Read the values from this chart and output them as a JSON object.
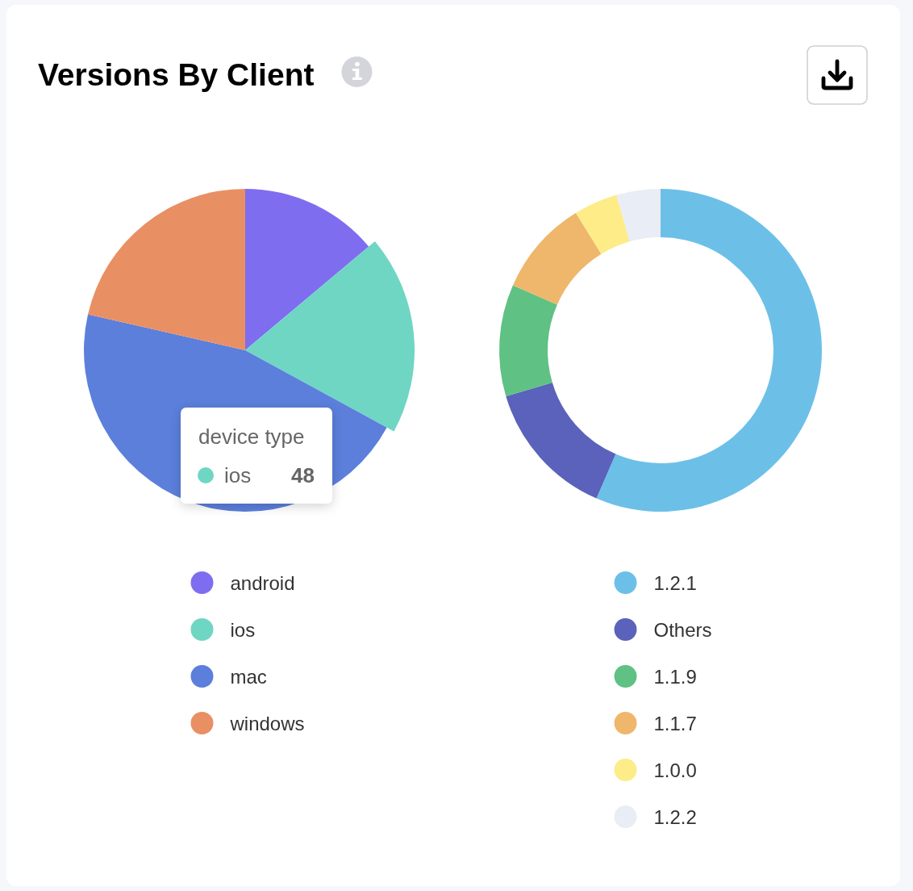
{
  "chart_data": [
    {
      "type": "pie",
      "title": "Versions By Client",
      "categories": [
        "android",
        "ios",
        "mac",
        "windows"
      ],
      "values": [
        35,
        48,
        115,
        54
      ],
      "value_labels": [
        null,
        "48",
        null,
        null
      ],
      "colors": [
        "#7f6df0",
        "#6fd6c4",
        "#5b7fdb",
        "#e98f64"
      ],
      "legend": "bottom",
      "annotations": [
        {
          "text": "device type",
          "x": "ios"
        }
      ]
    },
    {
      "type": "donut",
      "categories": [
        "1.2.1",
        "Others",
        "1.1.9",
        "1.1.7",
        "1.0.0",
        "1.2.2"
      ],
      "values": [
        56.5,
        13.9,
        11.2,
        9.6,
        4.4,
        4.4
      ],
      "colors": [
        "#6cc0e8",
        "#5a62bb",
        "#5fc183",
        "#eeb76b",
        "#fdec88",
        "#e9edf5"
      ],
      "legend": "bottom"
    }
  ]
}
